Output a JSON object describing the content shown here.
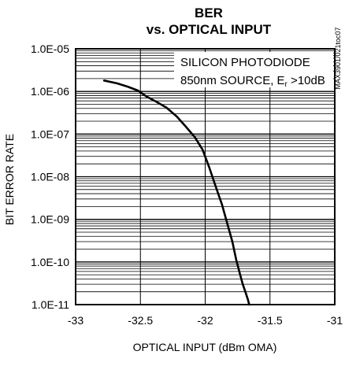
{
  "chart_data": {
    "type": "line",
    "title_lines": [
      "BER",
      "vs. OPTICAL INPUT"
    ],
    "xlabel": "OPTICAL INPUT (dBm OMA)",
    "ylabel": "BIT ERROR RATE",
    "x_scale": "linear",
    "y_scale": "log",
    "xlim": [
      -33,
      -31
    ],
    "ylim": [
      1e-11,
      1e-05
    ],
    "x_ticks": [
      -33,
      -32.5,
      -32,
      -31.5,
      -31
    ],
    "x_tick_labels": [
      "-33",
      "-32.5",
      "-32",
      "-31.5",
      "-31"
    ],
    "y_ticks": [
      1e-05,
      1e-06,
      1e-07,
      1e-08,
      1e-09,
      1e-10,
      1e-11
    ],
    "y_tick_labels": [
      "1.0E-05",
      "1.0E-06",
      "1.0E-07",
      "1.0E-08",
      "1.0E-09",
      "1.0E-10",
      "1.0E-11"
    ],
    "grid": true,
    "annotations": {
      "line1": "SILICON PHOTODIODE",
      "line2_prefix": "850nm SOURCE, E",
      "line2_sub": "r",
      "line2_suffix": " >10dB"
    },
    "side_note": "MAX3901/021toc07",
    "series": [
      {
        "x": [
          -32.78,
          -32.68,
          -32.6,
          -32.52,
          -32.45,
          -32.38,
          -32.3,
          -32.22,
          -32.15,
          -32.08,
          -32.02,
          -31.97,
          -31.92,
          -31.87,
          -31.83,
          -31.79,
          -31.76,
          -31.73,
          -31.71,
          -31.69,
          -31.67,
          -31.66
        ],
        "y": [
          1.8e-06,
          1.55e-06,
          1.3e-06,
          1.05e-06,
          7.5e-07,
          5.8e-07,
          4.2e-07,
          2.6e-07,
          1.5e-07,
          8.5e-08,
          4.3e-08,
          1.7e-08,
          6e-09,
          2.2e-09,
          8e-10,
          3e-10,
          1.1e-10,
          5e-11,
          3e-11,
          2e-11,
          1.3e-11,
          1e-11
        ]
      }
    ]
  }
}
